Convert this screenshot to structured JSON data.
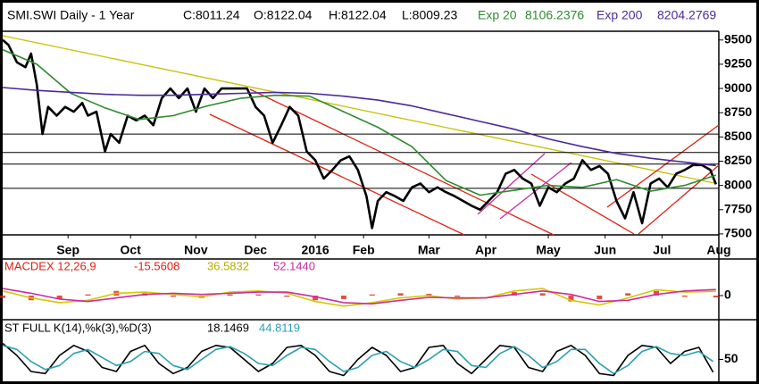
{
  "chart_data": [
    {
      "type": "line",
      "title": "SMI.SWI Daily -  1 Year",
      "quote": [
        "C:8011.24",
        "O:8122.04",
        "H:8122.04",
        "L:8009.23"
      ],
      "xlim": [
        0,
        252
      ],
      "ylim": [
        7490,
        9590
      ],
      "xticks": [
        {
          "value": 23,
          "label": "Sep"
        },
        {
          "value": 45,
          "label": "Oct"
        },
        {
          "value": 68,
          "label": "Nov"
        },
        {
          "value": 89,
          "label": "Dec"
        },
        {
          "value": 110,
          "label": "2016"
        },
        {
          "value": 127,
          "label": "Feb"
        },
        {
          "value": 150,
          "label": "Mar"
        },
        {
          "value": 170,
          "label": "Apr"
        },
        {
          "value": 192,
          "label": "May"
        },
        {
          "value": 212,
          "label": "Jun"
        },
        {
          "value": 232,
          "label": "Jul"
        },
        {
          "value": 252,
          "label": "Aug"
        }
      ],
      "yticks": [
        7500,
        7750,
        8000,
        8250,
        8500,
        8750,
        9000,
        9250,
        9500
      ],
      "reference_lines": [
        8530,
        8340,
        8220,
        7970
      ],
      "series": [
        {
          "color": "#000000",
          "x": [
            0,
            2,
            5,
            8,
            10,
            12,
            14,
            16,
            19,
            22,
            25,
            28,
            30,
            33,
            36,
            38,
            41,
            44,
            47,
            50,
            53,
            56,
            59,
            62,
            65,
            68,
            71,
            74,
            77,
            80,
            83,
            86,
            89,
            92,
            95,
            98,
            101,
            104,
            107,
            110,
            113,
            116,
            119,
            122,
            125,
            128,
            130,
            132,
            135,
            138,
            141,
            144,
            147,
            150,
            153,
            156,
            159,
            162,
            165,
            168,
            171,
            174,
            177,
            180,
            183,
            186,
            189,
            192,
            195,
            198,
            201,
            204,
            207,
            210,
            213,
            216,
            219,
            222,
            225,
            228,
            231,
            234,
            237,
            240,
            243,
            246,
            249,
            251
          ],
          "values": [
            9500,
            9450,
            9270,
            9220,
            9360,
            9040,
            8530,
            8810,
            8720,
            8810,
            8760,
            8850,
            8720,
            8760,
            8350,
            8530,
            8440,
            8720,
            8670,
            8720,
            8620,
            8900,
            9000,
            8900,
            9000,
            8760,
            9000,
            8900,
            9000,
            9000,
            9000,
            9000,
            8810,
            8720,
            8440,
            8620,
            8810,
            8720,
            8350,
            8260,
            8070,
            8160,
            8260,
            8300,
            8160,
            7890,
            7560,
            7840,
            7930,
            7890,
            7840,
            7980,
            8020,
            7930,
            7980,
            7930,
            7890,
            7840,
            7790,
            7750,
            7840,
            7930,
            8120,
            8160,
            8070,
            8020,
            7790,
            7980,
            7930,
            8020,
            8070,
            8260,
            8160,
            8200,
            8120,
            7840,
            7660,
            7930,
            7610,
            8020,
            8070,
            7980,
            8120,
            8160,
            8210,
            8210,
            8160,
            8011.24
          ]
        },
        {
          "name": "Exp 20",
          "readout": "8106.2376",
          "color": "#2e8b2e",
          "x": [
            0,
            12,
            24,
            36,
            48,
            60,
            72,
            84,
            96,
            108,
            120,
            132,
            144,
            156,
            168,
            180,
            192,
            204,
            216,
            228,
            240,
            251
          ],
          "values": [
            9400,
            9250,
            8950,
            8800,
            8680,
            8720,
            8820,
            8900,
            8930,
            8920,
            8760,
            8600,
            8400,
            8050,
            7900,
            7950,
            8000,
            7980,
            8060,
            7940,
            8000,
            8106.2376
          ]
        },
        {
          "name": "Exp 200",
          "readout": "8204.2769",
          "color": "#4b2a9a",
          "x": [
            0,
            12,
            24,
            36,
            48,
            60,
            72,
            84,
            96,
            108,
            120,
            132,
            144,
            156,
            168,
            180,
            192,
            204,
            216,
            228,
            240,
            251
          ],
          "values": [
            9010,
            8980,
            8960,
            8940,
            8930,
            8930,
            8940,
            8950,
            8960,
            8950,
            8920,
            8880,
            8820,
            8740,
            8660,
            8580,
            8480,
            8400,
            8330,
            8280,
            8240,
            8204.2769
          ]
        }
      ]
    },
    {
      "type": "line",
      "title": "MACDEX 12,26,9",
      "xlim": [
        0,
        252
      ],
      "ylim": [
        -160,
        160
      ],
      "yticks": [
        0
      ],
      "series": [
        {
          "kind": "bar",
          "readout": "-15.5608",
          "color": "#e02010",
          "x": [
            0,
            10,
            20,
            30,
            40,
            50,
            60,
            70,
            80,
            90,
            100,
            110,
            120,
            130,
            140,
            150,
            160,
            170,
            180,
            190,
            200,
            210,
            220,
            230,
            240,
            251
          ],
          "values": [
            -20,
            -40,
            -30,
            10,
            40,
            20,
            -10,
            -20,
            10,
            10,
            -10,
            -40,
            -30,
            10,
            20,
            15,
            -10,
            0,
            30,
            20,
            -50,
            -30,
            20,
            40,
            -10,
            -15.5608
          ]
        },
        {
          "readout": "36.5832",
          "color": "#d4c800",
          "x": [
            0,
            10,
            20,
            30,
            40,
            50,
            60,
            70,
            80,
            90,
            100,
            110,
            120,
            130,
            140,
            150,
            160,
            170,
            180,
            190,
            200,
            210,
            220,
            230,
            240,
            251
          ],
          "values": [
            40,
            -20,
            -60,
            -40,
            20,
            30,
            10,
            -10,
            30,
            40,
            20,
            -50,
            -90,
            -60,
            -20,
            0,
            -30,
            -20,
            40,
            60,
            -40,
            -80,
            -20,
            50,
            30,
            36.5832
          ]
        },
        {
          "readout": "52.1440",
          "color": "#cc2ca0",
          "x": [
            0,
            10,
            20,
            30,
            40,
            50,
            60,
            70,
            80,
            90,
            100,
            110,
            120,
            130,
            140,
            150,
            160,
            170,
            180,
            190,
            200,
            210,
            220,
            230,
            240,
            251
          ],
          "values": [
            60,
            20,
            -30,
            -50,
            -20,
            10,
            20,
            10,
            20,
            30,
            30,
            -10,
            -60,
            -70,
            -40,
            -15,
            -20,
            -20,
            10,
            40,
            10,
            -50,
            -40,
            10,
            40,
            52.144
          ]
        }
      ]
    },
    {
      "type": "line",
      "title": "ST FULL K(14),%k(3),%D(3)",
      "xlim": [
        0,
        252
      ],
      "ylim": [
        0,
        100
      ],
      "yticks": [
        50
      ],
      "series": [
        {
          "readout": "18.1469",
          "color": "#000000",
          "x": [
            0,
            5,
            10,
            15,
            20,
            25,
            30,
            35,
            40,
            45,
            50,
            55,
            60,
            65,
            70,
            75,
            80,
            85,
            90,
            95,
            100,
            105,
            110,
            115,
            120,
            125,
            130,
            135,
            140,
            145,
            150,
            155,
            160,
            165,
            170,
            175,
            180,
            185,
            190,
            195,
            200,
            205,
            210,
            215,
            220,
            225,
            230,
            235,
            240,
            245,
            250
          ],
          "values": [
            90,
            60,
            20,
            15,
            60,
            85,
            70,
            30,
            20,
            70,
            85,
            40,
            15,
            30,
            70,
            85,
            80,
            50,
            20,
            40,
            80,
            85,
            60,
            20,
            10,
            50,
            80,
            60,
            20,
            30,
            80,
            85,
            40,
            15,
            50,
            85,
            80,
            30,
            20,
            70,
            85,
            60,
            15,
            10,
            60,
            85,
            80,
            40,
            70,
            80,
            18.1469
          ]
        },
        {
          "readout": "44.8119",
          "color": "#2aa0b0",
          "x": [
            0,
            5,
            10,
            15,
            20,
            25,
            30,
            35,
            40,
            45,
            50,
            55,
            60,
            65,
            70,
            75,
            80,
            85,
            90,
            95,
            100,
            105,
            110,
            115,
            120,
            125,
            130,
            135,
            140,
            145,
            150,
            155,
            160,
            165,
            170,
            175,
            180,
            185,
            190,
            195,
            200,
            205,
            210,
            215,
            220,
            225,
            230,
            235,
            240,
            245,
            250
          ],
          "values": [
            85,
            75,
            45,
            25,
            35,
            65,
            75,
            55,
            35,
            45,
            70,
            65,
            35,
            25,
            50,
            75,
            82,
            65,
            40,
            35,
            60,
            80,
            75,
            45,
            20,
            30,
            60,
            70,
            45,
            30,
            50,
            75,
            70,
            35,
            30,
            65,
            82,
            60,
            30,
            45,
            75,
            75,
            40,
            15,
            35,
            70,
            82,
            65,
            60,
            70,
            44.8119
          ]
        }
      ]
    }
  ]
}
